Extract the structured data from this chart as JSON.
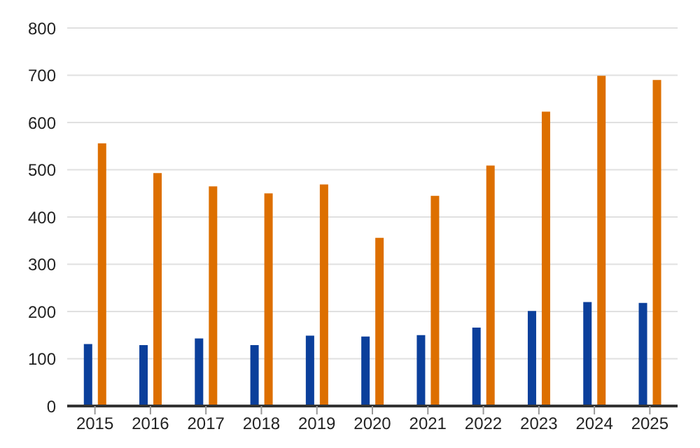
{
  "chart_data": {
    "type": "bar",
    "categories": [
      "2015",
      "2016",
      "2017",
      "2018",
      "2019",
      "2020",
      "2021",
      "2022",
      "2023",
      "2024",
      "2025"
    ],
    "series": [
      {
        "color": "#0b3f9b",
        "values": [
          131,
          129,
          143,
          129,
          149,
          147,
          150,
          166,
          201,
          220,
          218
        ]
      },
      {
        "color": "#dd6f00",
        "values": [
          556,
          493,
          465,
          450,
          469,
          356,
          445,
          509,
          623,
          699,
          690
        ]
      }
    ],
    "ylim": [
      0,
      800
    ],
    "yticks": [
      0,
      100,
      200,
      300,
      400,
      500,
      600,
      700,
      800
    ],
    "grid": "y",
    "legend": false
  }
}
